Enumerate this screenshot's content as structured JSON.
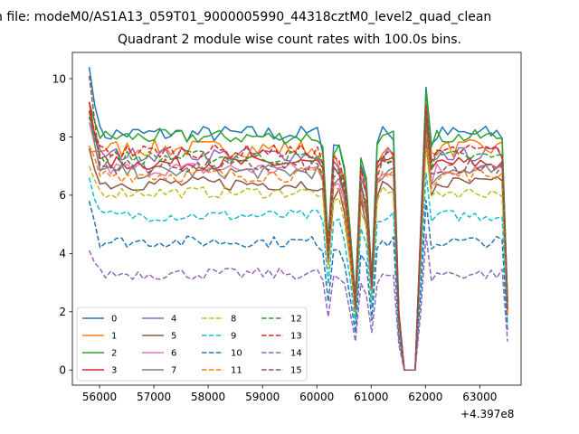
{
  "suptitle": "n file: modeM0/AS1A13_059T01_9000005990_44318cztM0_level2_quad_clean",
  "chart_data": {
    "type": "line",
    "title": "Quadrant 2 module wise count rates with 100.0s bins.",
    "xlabel": "",
    "ylabel": "",
    "x_offset_label": "+4.397e8",
    "xlim": [
      55500,
      63760
    ],
    "ylim": [
      -0.52,
      10.9
    ],
    "x_ticks": [
      56000,
      57000,
      58000,
      59000,
      60000,
      61000,
      62000,
      63000
    ],
    "x_tick_labels": [
      "56000",
      "57000",
      "58000",
      "59000",
      "60000",
      "61000",
      "62000",
      "63000"
    ],
    "y_ticks": [
      0,
      2,
      4,
      6,
      8,
      10
    ],
    "y_tick_labels": [
      "0",
      "2",
      "4",
      "6",
      "8",
      "10"
    ],
    "grid": false,
    "legend_placement": "lower-left",
    "legend_columns": 4,
    "x_start": 55810,
    "x_step": 100,
    "x_end": 63510,
    "dip_shape": {
      "60100": 0.95,
      "60200": 0.55,
      "60300": 0.95,
      "60400": 0.95,
      "60500": 0.85,
      "60600": 0.6,
      "60700": 0.3,
      "60800": 0.9,
      "60900": 0.8,
      "61000": 0.4,
      "61100": 0.95,
      "61200": 1.0,
      "61300": 1.0,
      "61400": 1.0,
      "61500": 0.25,
      "61600": 0.0,
      "61700": 0.0,
      "61800": 0.0,
      "61900": 0.6,
      "62000": 1.05,
      "62100": 0.95,
      "63510": 0.3
    },
    "series": [
      {
        "name": "0",
        "color": "#1f77b4",
        "dash": "solid",
        "level": 8.1,
        "start": 10.4,
        "noise": 0.3
      },
      {
        "name": "1",
        "color": "#ff7f0e",
        "dash": "solid",
        "level": 7.6,
        "start": 7.5,
        "noise": 0.3
      },
      {
        "name": "2",
        "color": "#2ca02c",
        "dash": "solid",
        "level": 8.0,
        "start": 9.2,
        "noise": 0.25
      },
      {
        "name": "3",
        "color": "#d62728",
        "dash": "solid",
        "level": 7.1,
        "start": 9.2,
        "noise": 0.25
      },
      {
        "name": "4",
        "color": "#9467bd",
        "dash": "solid",
        "level": 7.4,
        "start": 8.7,
        "noise": 0.25
      },
      {
        "name": "5",
        "color": "#8c564b",
        "dash": "solid",
        "level": 6.4,
        "start": 7.6,
        "noise": 0.25
      },
      {
        "name": "6",
        "color": "#e377c2",
        "dash": "solid",
        "level": 6.9,
        "start": 8.5,
        "noise": 0.25
      },
      {
        "name": "7",
        "color": "#7f7f7f",
        "dash": "solid",
        "level": 6.8,
        "start": 8.9,
        "noise": 0.25
      },
      {
        "name": "8",
        "color": "#bcbd22",
        "dash": "dashed",
        "level": 6.1,
        "start": 7.0,
        "noise": 0.2
      },
      {
        "name": "9",
        "color": "#17becf",
        "dash": "dashed",
        "level": 5.3,
        "start": 6.6,
        "noise": 0.2
      },
      {
        "name": "10",
        "color": "#1f77b4",
        "dash": "dashed",
        "level": 4.4,
        "start": 5.8,
        "noise": 0.2
      },
      {
        "name": "11",
        "color": "#ff7f0e",
        "dash": "dashed",
        "level": 6.7,
        "start": 7.7,
        "noise": 0.25
      },
      {
        "name": "12",
        "color": "#2ca02c",
        "dash": "dashed",
        "level": 7.3,
        "start": 8.7,
        "noise": 0.25
      },
      {
        "name": "13",
        "color": "#d62728",
        "dash": "dashed",
        "level": 7.5,
        "start": 8.9,
        "noise": 0.25
      },
      {
        "name": "14",
        "color": "#9467bd",
        "dash": "dashed",
        "level": 3.3,
        "start": 4.1,
        "noise": 0.2
      },
      {
        "name": "15",
        "color": "#8c564b",
        "dash": "dashed",
        "level": 7.0,
        "start": 10.1,
        "noise": 0.25
      }
    ]
  }
}
